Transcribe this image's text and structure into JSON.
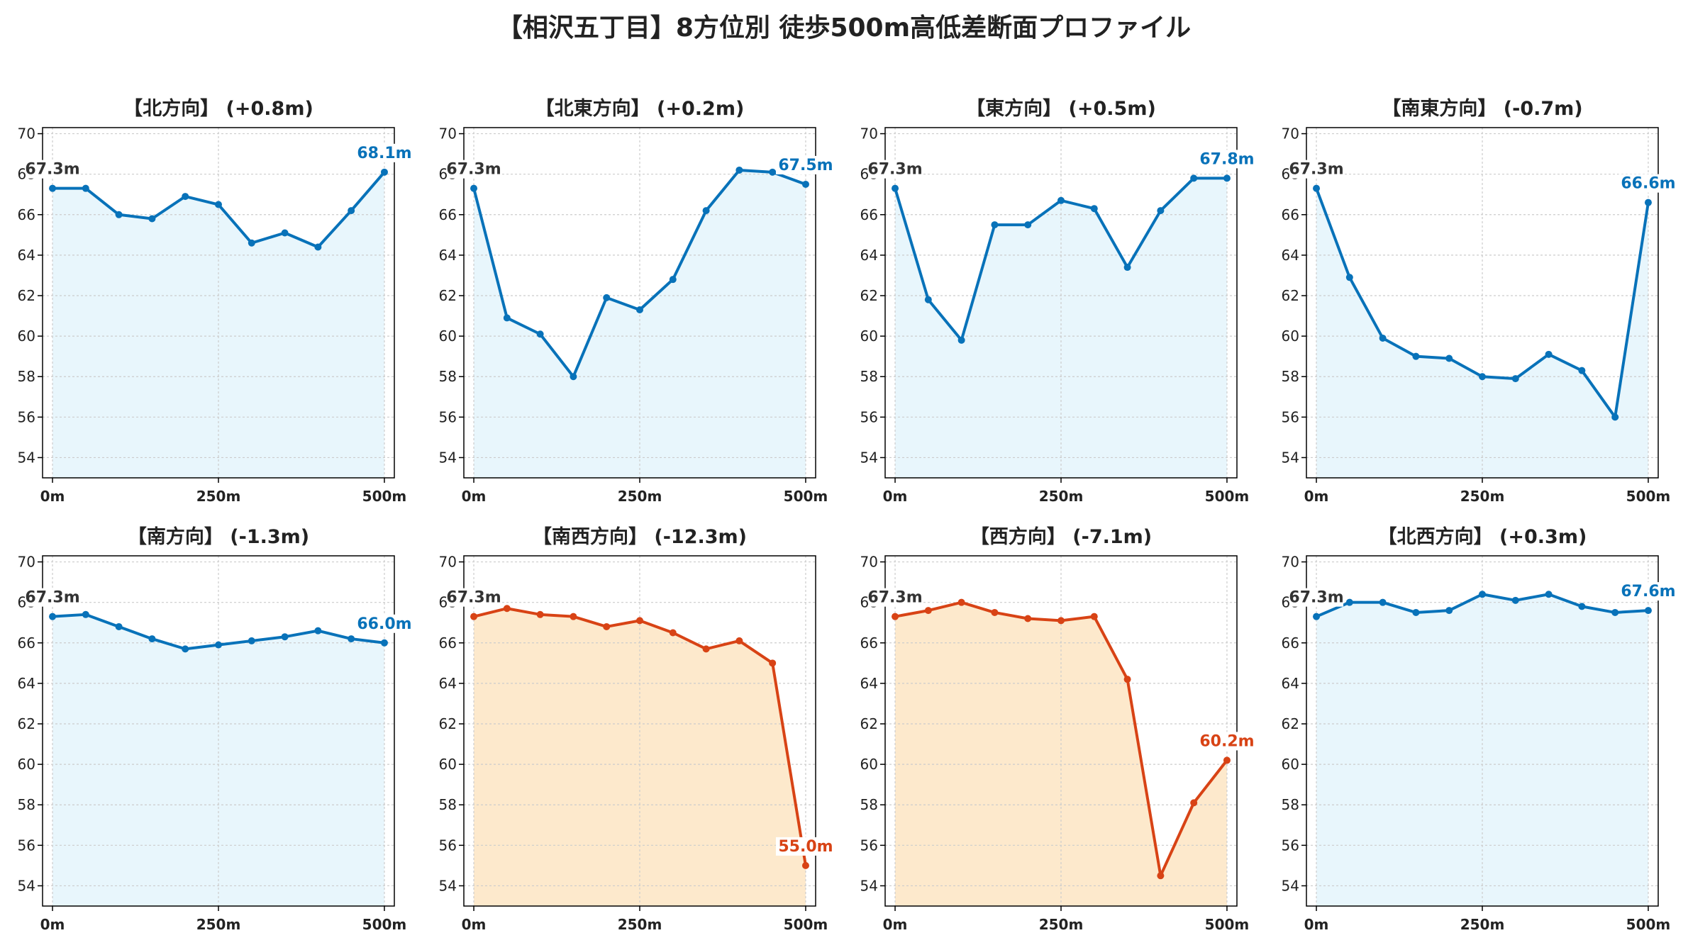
{
  "figure_title": "【相沢五丁目】8方位別 徒歩500m高低差断面プロファイル",
  "colors": {
    "up": "#0872b9",
    "up_fill": "#e8f6fc",
    "down": "#d84315",
    "down_fill": "#fde9cc",
    "start_label": "#333333",
    "grid": "#cccccc",
    "axis": "#000000"
  },
  "chart_data": [
    {
      "type": "area",
      "title": "【北方向】 (+0.8m)",
      "trend": "up",
      "x": [
        0,
        50,
        100,
        150,
        200,
        250,
        300,
        350,
        400,
        450,
        500
      ],
      "values": [
        67.3,
        67.3,
        66.0,
        65.8,
        66.9,
        66.5,
        64.6,
        65.1,
        64.4,
        66.2,
        68.1
      ],
      "start_label": "67.3m",
      "end_label": "68.1m",
      "xticks": [
        "0m",
        "250m",
        "500m"
      ],
      "yticks": [
        54,
        56,
        58,
        60,
        62,
        64,
        66,
        68,
        70
      ],
      "ylim": [
        53,
        70.3
      ],
      "xlim": [
        -15,
        515
      ],
      "grid": true
    },
    {
      "type": "area",
      "title": "【北東方向】 (+0.2m)",
      "trend": "up",
      "x": [
        0,
        50,
        100,
        150,
        200,
        250,
        300,
        350,
        400,
        450,
        500
      ],
      "values": [
        67.3,
        60.9,
        60.1,
        58.0,
        61.9,
        61.3,
        62.8,
        66.2,
        68.2,
        68.1,
        67.5
      ],
      "start_label": "67.3m",
      "end_label": "67.5m",
      "xticks": [
        "0m",
        "250m",
        "500m"
      ],
      "yticks": [
        54,
        56,
        58,
        60,
        62,
        64,
        66,
        68,
        70
      ],
      "ylim": [
        53,
        70.3
      ],
      "xlim": [
        -15,
        515
      ],
      "grid": true
    },
    {
      "type": "area",
      "title": "【東方向】 (+0.5m)",
      "trend": "up",
      "x": [
        0,
        50,
        100,
        150,
        200,
        250,
        300,
        350,
        400,
        450,
        500
      ],
      "values": [
        67.3,
        61.8,
        59.8,
        65.5,
        65.5,
        66.7,
        66.3,
        63.4,
        66.2,
        67.8,
        67.8
      ],
      "start_label": "67.3m",
      "end_label": "67.8m",
      "xticks": [
        "0m",
        "250m",
        "500m"
      ],
      "yticks": [
        54,
        56,
        58,
        60,
        62,
        64,
        66,
        68,
        70
      ],
      "ylim": [
        53,
        70.3
      ],
      "xlim": [
        -15,
        515
      ],
      "grid": true
    },
    {
      "type": "area",
      "title": "【南東方向】 (-0.7m)",
      "trend": "up",
      "x": [
        0,
        50,
        100,
        150,
        200,
        250,
        300,
        350,
        400,
        450,
        500
      ],
      "values": [
        67.3,
        62.9,
        59.9,
        59.0,
        58.9,
        58.0,
        57.9,
        59.1,
        58.3,
        56.0,
        66.6
      ],
      "start_label": "67.3m",
      "end_label": "66.6m",
      "xticks": [
        "0m",
        "250m",
        "500m"
      ],
      "yticks": [
        54,
        56,
        58,
        60,
        62,
        64,
        66,
        68,
        70
      ],
      "ylim": [
        53,
        70.3
      ],
      "xlim": [
        -15,
        515
      ],
      "grid": true
    },
    {
      "type": "area",
      "title": "【南方向】 (-1.3m)",
      "trend": "up",
      "x": [
        0,
        50,
        100,
        150,
        200,
        250,
        300,
        350,
        400,
        450,
        500
      ],
      "values": [
        67.3,
        67.4,
        66.8,
        66.2,
        65.7,
        65.9,
        66.1,
        66.3,
        66.6,
        66.2,
        66.0
      ],
      "start_label": "67.3m",
      "end_label": "66.0m",
      "xticks": [
        "0m",
        "250m",
        "500m"
      ],
      "yticks": [
        54,
        56,
        58,
        60,
        62,
        64,
        66,
        68,
        70
      ],
      "ylim": [
        53,
        70.3
      ],
      "xlim": [
        -15,
        515
      ],
      "grid": true
    },
    {
      "type": "area",
      "title": "【南西方向】 (-12.3m)",
      "trend": "down",
      "x": [
        0,
        50,
        100,
        150,
        200,
        250,
        300,
        350,
        400,
        450,
        500
      ],
      "values": [
        67.3,
        67.7,
        67.4,
        67.3,
        66.8,
        67.1,
        66.5,
        65.7,
        66.1,
        65.0,
        55.0
      ],
      "start_label": "67.3m",
      "end_label": "55.0m",
      "xticks": [
        "0m",
        "250m",
        "500m"
      ],
      "yticks": [
        54,
        56,
        58,
        60,
        62,
        64,
        66,
        68,
        70
      ],
      "ylim": [
        53,
        70.3
      ],
      "xlim": [
        -15,
        515
      ],
      "grid": true
    },
    {
      "type": "area",
      "title": "【西方向】 (-7.1m)",
      "trend": "down",
      "x": [
        0,
        50,
        100,
        150,
        200,
        250,
        300,
        350,
        400,
        450,
        500
      ],
      "values": [
        67.3,
        67.6,
        68.0,
        67.5,
        67.2,
        67.1,
        67.3,
        64.2,
        54.5,
        58.1,
        60.2
      ],
      "start_label": "67.3m",
      "end_label": "60.2m",
      "xticks": [
        "0m",
        "250m",
        "500m"
      ],
      "yticks": [
        54,
        56,
        58,
        60,
        62,
        64,
        66,
        68,
        70
      ],
      "ylim": [
        53,
        70.3
      ],
      "xlim": [
        -15,
        515
      ],
      "grid": true
    },
    {
      "type": "area",
      "title": "【北西方向】 (+0.3m)",
      "trend": "up",
      "x": [
        0,
        50,
        100,
        150,
        200,
        250,
        300,
        350,
        400,
        450,
        500
      ],
      "values": [
        67.3,
        68.0,
        68.0,
        67.5,
        67.6,
        68.4,
        68.1,
        68.4,
        67.8,
        67.5,
        67.6
      ],
      "start_label": "67.3m",
      "end_label": "67.6m",
      "xticks": [
        "0m",
        "250m",
        "500m"
      ],
      "yticks": [
        54,
        56,
        58,
        60,
        62,
        64,
        66,
        68,
        70
      ],
      "ylim": [
        53,
        70.3
      ],
      "xlim": [
        -15,
        515
      ],
      "grid": true
    }
  ]
}
